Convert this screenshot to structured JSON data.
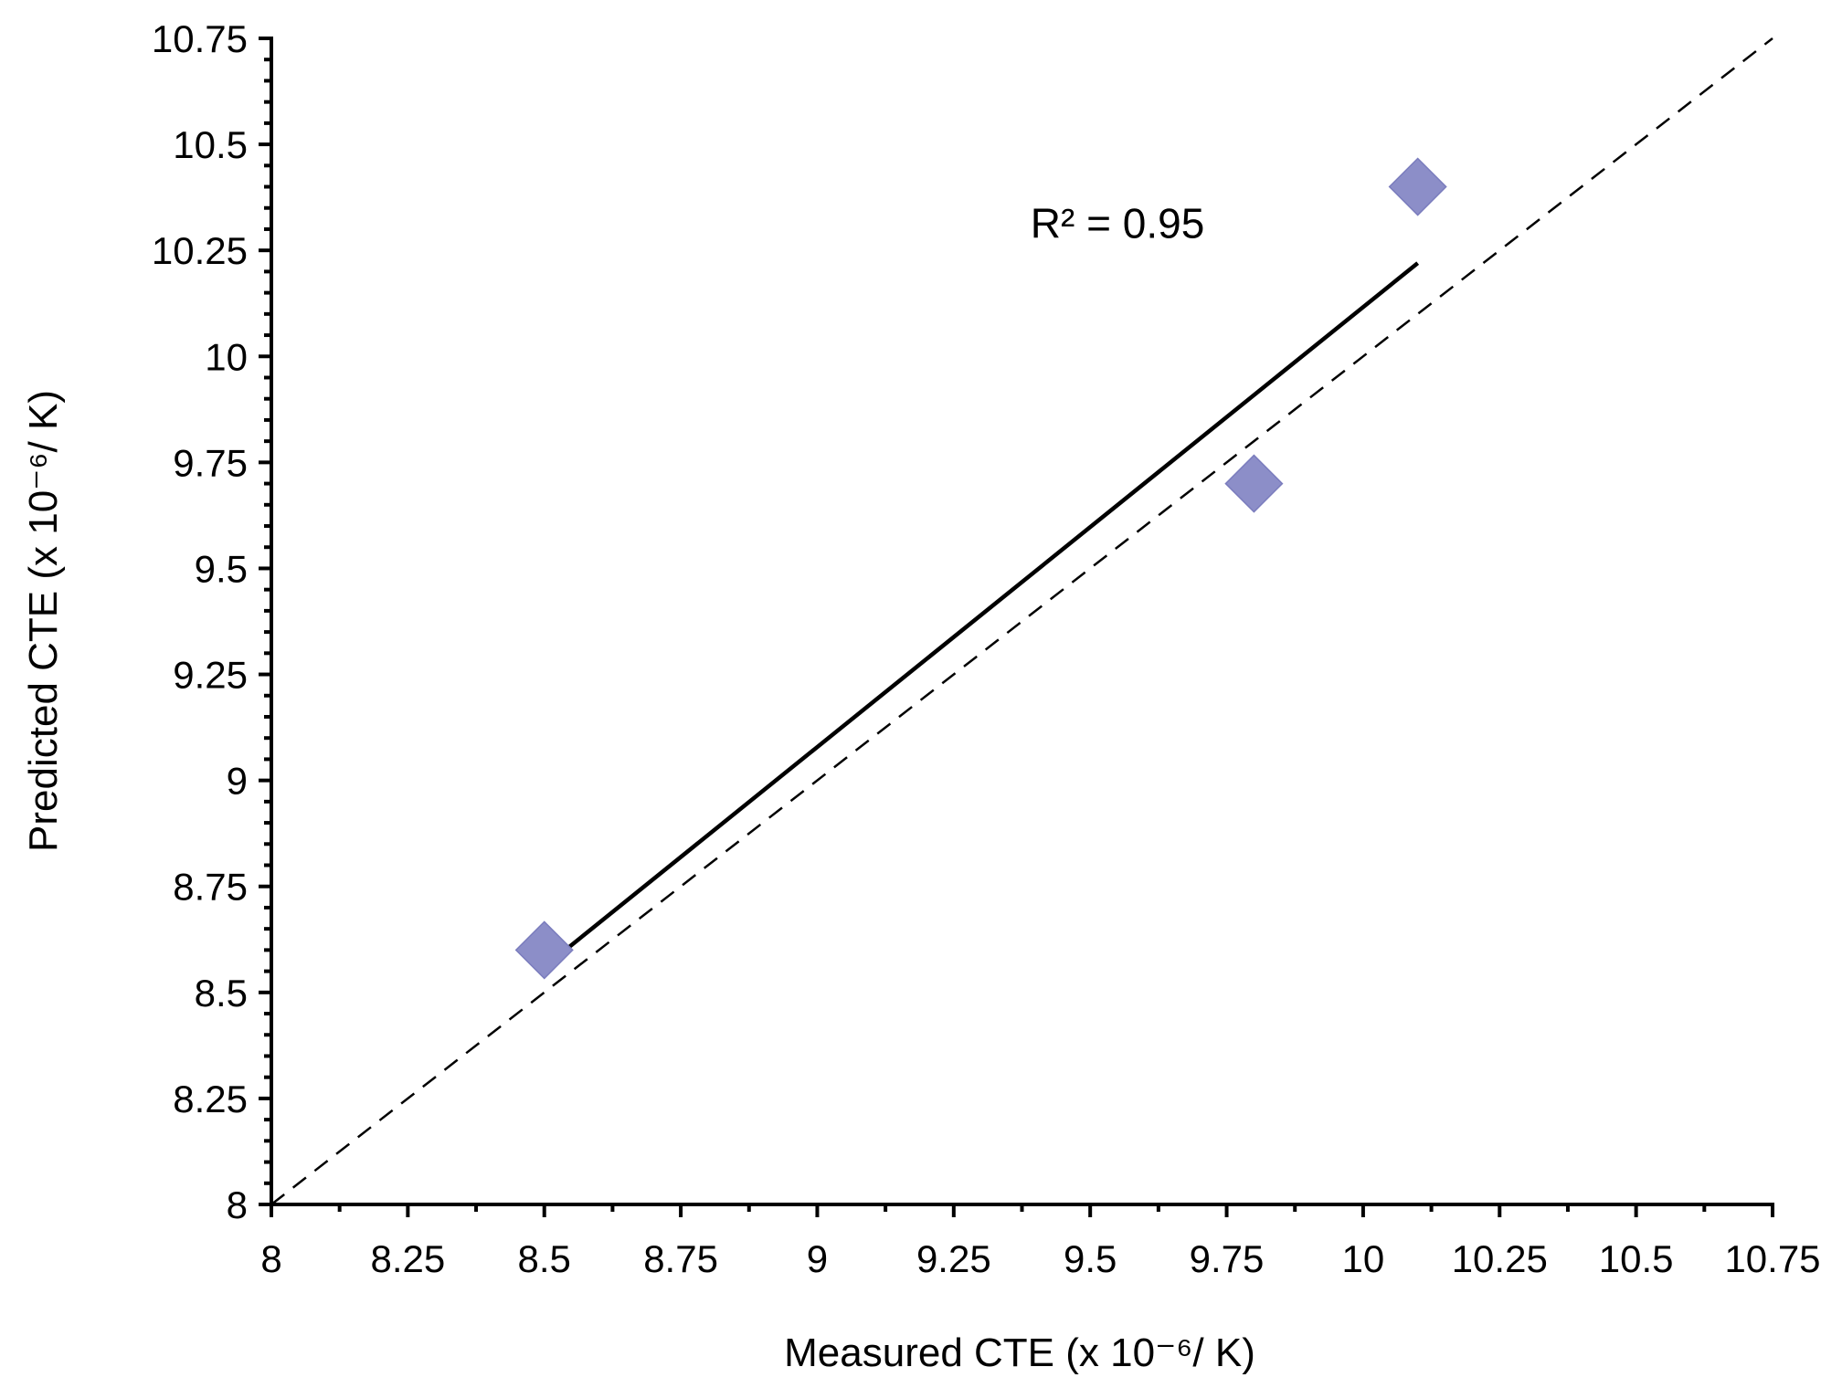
{
  "chart_data": {
    "type": "scatter",
    "title": "",
    "xlabel": "Measured CTE (x 10⁻⁶/ K)",
    "ylabel": "Predicted CTE (x 10⁻⁶/ K)",
    "xlim": [
      8,
      10.75
    ],
    "ylim": [
      8,
      10.75
    ],
    "x_ticks": [
      "8",
      "8.25",
      "8.5",
      "8.75",
      "9",
      "9.25",
      "9.5",
      "9.75",
      "10",
      "10.25",
      "10.5",
      "10.75"
    ],
    "y_ticks": [
      "8",
      "8.25",
      "8.5",
      "8.75",
      "9",
      "9.25",
      "9.5",
      "9.75",
      "10",
      "10.25",
      "10.5",
      "10.75"
    ],
    "grid": false,
    "legend": "none",
    "series": [
      {
        "marker": "diamond",
        "color": "#8c8ec8",
        "points": [
          {
            "x": 8.5,
            "y": 8.6
          },
          {
            "x": 9.8,
            "y": 9.7
          },
          {
            "x": 10.1,
            "y": 10.4
          }
        ]
      }
    ],
    "trendline": {
      "type": "linear",
      "style": "solid",
      "color": "#000000",
      "x": [
        8.5,
        10.1
      ],
      "y": [
        8.56,
        10.22
      ]
    },
    "reference_line": {
      "type": "y=x",
      "style": "dashed",
      "color": "#000000"
    },
    "annotations": [
      {
        "text": "R² = 0.95",
        "x": 9.55,
        "y": 10.28
      }
    ]
  }
}
